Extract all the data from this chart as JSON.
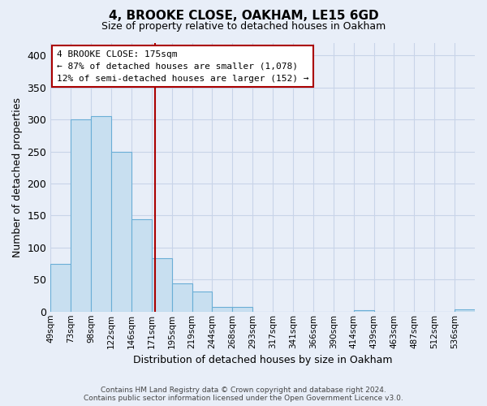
{
  "title": "4, BROOKE CLOSE, OAKHAM, LE15 6GD",
  "subtitle": "Size of property relative to detached houses in Oakham",
  "xlabel": "Distribution of detached houses by size in Oakham",
  "ylabel": "Number of detached properties",
  "footer_line1": "Contains HM Land Registry data © Crown copyright and database right 2024.",
  "footer_line2": "Contains public sector information licensed under the Open Government Licence v3.0.",
  "bin_labels": [
    "49sqm",
    "73sqm",
    "98sqm",
    "122sqm",
    "146sqm",
    "171sqm",
    "195sqm",
    "219sqm",
    "244sqm",
    "268sqm",
    "293sqm",
    "317sqm",
    "341sqm",
    "366sqm",
    "390sqm",
    "414sqm",
    "439sqm",
    "463sqm",
    "487sqm",
    "512sqm",
    "536sqm"
  ],
  "bar_heights": [
    74,
    300,
    305,
    249,
    144,
    83,
    44,
    32,
    7,
    7,
    0,
    0,
    0,
    0,
    0,
    2,
    0,
    0,
    0,
    0,
    3
  ],
  "bar_color": "#c8dff0",
  "bar_edge_color": "#6aaed6",
  "annotation_box_text1": "4 BROOKE CLOSE: 175sqm",
  "annotation_box_text2": "← 87% of detached houses are smaller (1,078)",
  "annotation_box_text3": "12% of semi-detached houses are larger (152) →",
  "vline_color": "#aa0000",
  "ylim": [
    0,
    420
  ],
  "yticks": [
    0,
    50,
    100,
    150,
    200,
    250,
    300,
    350,
    400
  ],
  "annotation_box_color": "#ffffff",
  "annotation_box_edge_color": "#aa0000",
  "grid_color": "#c8d4e8",
  "background_color": "#e8eef8"
}
